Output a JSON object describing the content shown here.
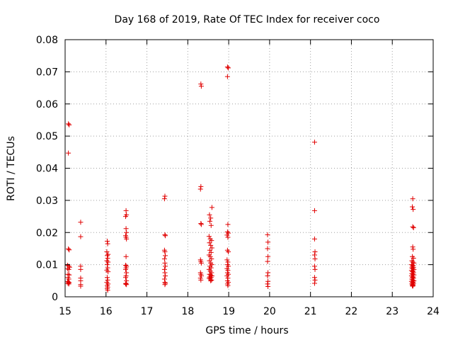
{
  "chart_data": {
    "type": "scatter",
    "title": "Day 168 of 2019, Rate Of TEC Index for receiver coco",
    "xlabel": "GPS time / hours",
    "ylabel": "ROTI / TECUs",
    "xlim": [
      15,
      24
    ],
    "ylim": [
      0,
      0.08
    ],
    "grid": true,
    "marker": "+",
    "marker_color": "#e00000",
    "xticks": [
      "15",
      "16",
      "17",
      "18",
      "19",
      "20",
      "21",
      "22",
      "23",
      "24"
    ],
    "yticks": [
      "0",
      "0.01",
      "0.02",
      "0.03",
      "0.04",
      "0.05",
      "0.06",
      "0.07",
      "0.08"
    ],
    "points": [
      [
        15.08,
        0.0538
      ],
      [
        15.1,
        0.0535
      ],
      [
        15.08,
        0.0447
      ],
      [
        15.08,
        0.0149
      ],
      [
        15.1,
        0.0146
      ],
      [
        15.06,
        0.0098
      ],
      [
        15.09,
        0.0095
      ],
      [
        15.11,
        0.0092
      ],
      [
        15.06,
        0.0088
      ],
      [
        15.09,
        0.0085
      ],
      [
        15.07,
        0.007
      ],
      [
        15.1,
        0.0068
      ],
      [
        15.07,
        0.006
      ],
      [
        15.09,
        0.0055
      ],
      [
        15.06,
        0.0048
      ],
      [
        15.08,
        0.0046
      ],
      [
        15.1,
        0.0044
      ],
      [
        15.07,
        0.0042
      ],
      [
        15.09,
        0.004
      ],
      [
        15.38,
        0.0232
      ],
      [
        15.38,
        0.0187
      ],
      [
        15.38,
        0.0095
      ],
      [
        15.38,
        0.0085
      ],
      [
        15.38,
        0.0058
      ],
      [
        15.38,
        0.005
      ],
      [
        15.38,
        0.0038
      ],
      [
        15.38,
        0.0033
      ],
      [
        16.03,
        0.0173
      ],
      [
        16.04,
        0.0165
      ],
      [
        16.02,
        0.014
      ],
      [
        16.05,
        0.0132
      ],
      [
        16.03,
        0.0128
      ],
      [
        16.04,
        0.012
      ],
      [
        16.02,
        0.0112
      ],
      [
        16.05,
        0.0108
      ],
      [
        16.03,
        0.01
      ],
      [
        16.04,
        0.009
      ],
      [
        16.02,
        0.0083
      ],
      [
        16.05,
        0.0078
      ],
      [
        16.03,
        0.006
      ],
      [
        16.04,
        0.0052
      ],
      [
        16.02,
        0.0045
      ],
      [
        16.05,
        0.004
      ],
      [
        16.03,
        0.0035
      ],
      [
        16.04,
        0.003
      ],
      [
        16.03,
        0.0025
      ],
      [
        16.04,
        0.002
      ],
      [
        16.49,
        0.0268
      ],
      [
        16.5,
        0.0255
      ],
      [
        16.48,
        0.025
      ],
      [
        16.49,
        0.0212
      ],
      [
        16.5,
        0.02
      ],
      [
        16.48,
        0.019
      ],
      [
        16.49,
        0.0185
      ],
      [
        16.5,
        0.018
      ],
      [
        16.49,
        0.0125
      ],
      [
        16.48,
        0.0098
      ],
      [
        16.5,
        0.0095
      ],
      [
        16.49,
        0.009
      ],
      [
        16.48,
        0.0085
      ],
      [
        16.5,
        0.0075
      ],
      [
        16.49,
        0.0065
      ],
      [
        16.48,
        0.006
      ],
      [
        16.5,
        0.005
      ],
      [
        16.49,
        0.0042
      ],
      [
        16.48,
        0.004
      ],
      [
        16.5,
        0.0038
      ],
      [
        17.44,
        0.0313
      ],
      [
        17.43,
        0.0305
      ],
      [
        17.44,
        0.0193
      ],
      [
        17.45,
        0.019
      ],
      [
        17.43,
        0.0145
      ],
      [
        17.44,
        0.014
      ],
      [
        17.45,
        0.0128
      ],
      [
        17.43,
        0.0118
      ],
      [
        17.44,
        0.0105
      ],
      [
        17.45,
        0.0095
      ],
      [
        17.43,
        0.0085
      ],
      [
        17.44,
        0.0075
      ],
      [
        17.45,
        0.0065
      ],
      [
        17.43,
        0.0055
      ],
      [
        17.44,
        0.0045
      ],
      [
        17.45,
        0.0042
      ],
      [
        17.44,
        0.0038
      ],
      [
        18.32,
        0.0662
      ],
      [
        18.33,
        0.0655
      ],
      [
        18.32,
        0.0343
      ],
      [
        18.31,
        0.0335
      ],
      [
        18.32,
        0.0228
      ],
      [
        18.33,
        0.0225
      ],
      [
        18.31,
        0.0115
      ],
      [
        18.32,
        0.011
      ],
      [
        18.33,
        0.0105
      ],
      [
        18.31,
        0.0075
      ],
      [
        18.32,
        0.007
      ],
      [
        18.33,
        0.0065
      ],
      [
        18.31,
        0.0058
      ],
      [
        18.32,
        0.0052
      ],
      [
        18.53,
        0.0255
      ],
      [
        18.56,
        0.0245
      ],
      [
        18.59,
        0.0278
      ],
      [
        18.54,
        0.0235
      ],
      [
        18.57,
        0.0222
      ],
      [
        18.52,
        0.0188
      ],
      [
        18.55,
        0.018
      ],
      [
        18.58,
        0.0175
      ],
      [
        18.53,
        0.0168
      ],
      [
        18.56,
        0.016
      ],
      [
        18.59,
        0.0152
      ],
      [
        18.54,
        0.0145
      ],
      [
        18.57,
        0.0138
      ],
      [
        18.52,
        0.013
      ],
      [
        18.55,
        0.0125
      ],
      [
        18.58,
        0.0118
      ],
      [
        18.53,
        0.0112
      ],
      [
        18.56,
        0.0105
      ],
      [
        18.59,
        0.01
      ],
      [
        18.54,
        0.0095
      ],
      [
        18.57,
        0.009
      ],
      [
        18.52,
        0.0085
      ],
      [
        18.55,
        0.008
      ],
      [
        18.58,
        0.0075
      ],
      [
        18.53,
        0.007
      ],
      [
        18.56,
        0.0068
      ],
      [
        18.59,
        0.0065
      ],
      [
        18.54,
        0.0062
      ],
      [
        18.57,
        0.006
      ],
      [
        18.52,
        0.0058
      ],
      [
        18.55,
        0.0055
      ],
      [
        18.58,
        0.0052
      ],
      [
        18.56,
        0.005
      ],
      [
        18.97,
        0.0715
      ],
      [
        18.99,
        0.0712
      ],
      [
        18.97,
        0.0685
      ],
      [
        18.98,
        0.0225
      ],
      [
        18.97,
        0.0202
      ],
      [
        18.99,
        0.0198
      ],
      [
        18.96,
        0.0192
      ],
      [
        18.98,
        0.0185
      ],
      [
        18.97,
        0.0145
      ],
      [
        18.99,
        0.014
      ],
      [
        18.96,
        0.0115
      ],
      [
        18.98,
        0.0108
      ],
      [
        18.97,
        0.01
      ],
      [
        18.99,
        0.0095
      ],
      [
        18.96,
        0.0088
      ],
      [
        18.98,
        0.0082
      ],
      [
        18.97,
        0.0075
      ],
      [
        18.99,
        0.007
      ],
      [
        18.96,
        0.0065
      ],
      [
        18.98,
        0.0058
      ],
      [
        18.97,
        0.005
      ],
      [
        18.99,
        0.0045
      ],
      [
        18.97,
        0.004
      ],
      [
        18.98,
        0.0035
      ],
      [
        19.95,
        0.0193
      ],
      [
        19.96,
        0.017
      ],
      [
        19.95,
        0.015
      ],
      [
        19.96,
        0.0125
      ],
      [
        19.95,
        0.011
      ],
      [
        19.96,
        0.0075
      ],
      [
        19.95,
        0.0065
      ],
      [
        19.96,
        0.0048
      ],
      [
        19.95,
        0.004
      ],
      [
        19.96,
        0.0032
      ],
      [
        21.1,
        0.0481
      ],
      [
        21.1,
        0.0268
      ],
      [
        21.1,
        0.018
      ],
      [
        21.11,
        0.014
      ],
      [
        21.1,
        0.013
      ],
      [
        21.11,
        0.0118
      ],
      [
        21.1,
        0.0095
      ],
      [
        21.11,
        0.0085
      ],
      [
        21.1,
        0.006
      ],
      [
        21.11,
        0.0052
      ],
      [
        21.1,
        0.0042
      ],
      [
        23.5,
        0.0305
      ],
      [
        23.49,
        0.028
      ],
      [
        23.51,
        0.0272
      ],
      [
        23.5,
        0.0218
      ],
      [
        23.52,
        0.0215
      ],
      [
        23.5,
        0.0155
      ],
      [
        23.51,
        0.0148
      ],
      [
        23.49,
        0.0125
      ],
      [
        23.52,
        0.012
      ],
      [
        23.48,
        0.0112
      ],
      [
        23.5,
        0.0108
      ],
      [
        23.53,
        0.0105
      ],
      [
        23.47,
        0.01
      ],
      [
        23.51,
        0.0098
      ],
      [
        23.49,
        0.0095
      ],
      [
        23.52,
        0.0092
      ],
      [
        23.48,
        0.009
      ],
      [
        23.5,
        0.0088
      ],
      [
        23.53,
        0.0085
      ],
      [
        23.47,
        0.0082
      ],
      [
        23.51,
        0.008
      ],
      [
        23.49,
        0.0078
      ],
      [
        23.52,
        0.0075
      ],
      [
        23.48,
        0.0072
      ],
      [
        23.5,
        0.007
      ],
      [
        23.53,
        0.0068
      ],
      [
        23.47,
        0.0065
      ],
      [
        23.51,
        0.0062
      ],
      [
        23.49,
        0.006
      ],
      [
        23.52,
        0.0058
      ],
      [
        23.48,
        0.0055
      ],
      [
        23.5,
        0.0052
      ],
      [
        23.53,
        0.005
      ],
      [
        23.47,
        0.0048
      ],
      [
        23.51,
        0.0046
      ],
      [
        23.49,
        0.0044
      ],
      [
        23.52,
        0.0042
      ],
      [
        23.48,
        0.004
      ],
      [
        23.5,
        0.0038
      ],
      [
        23.51,
        0.0036
      ],
      [
        23.49,
        0.0035
      ],
      [
        23.5,
        0.0033
      ]
    ]
  }
}
